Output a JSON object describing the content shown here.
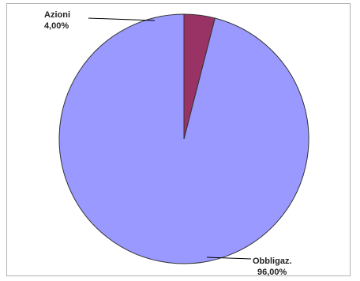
{
  "chart_data": {
    "type": "pie",
    "title": "",
    "start": "top",
    "direction": "counterclockwise",
    "slices": [
      {
        "label": "Obbligaz.",
        "value_text": "96,00%",
        "value": 96.0,
        "color": "#9999ff"
      },
      {
        "label": "Azioni",
        "value_text": "4,00%",
        "value": 4.0,
        "color": "#993366"
      }
    ],
    "border_color": "#333333",
    "legend": "none"
  }
}
